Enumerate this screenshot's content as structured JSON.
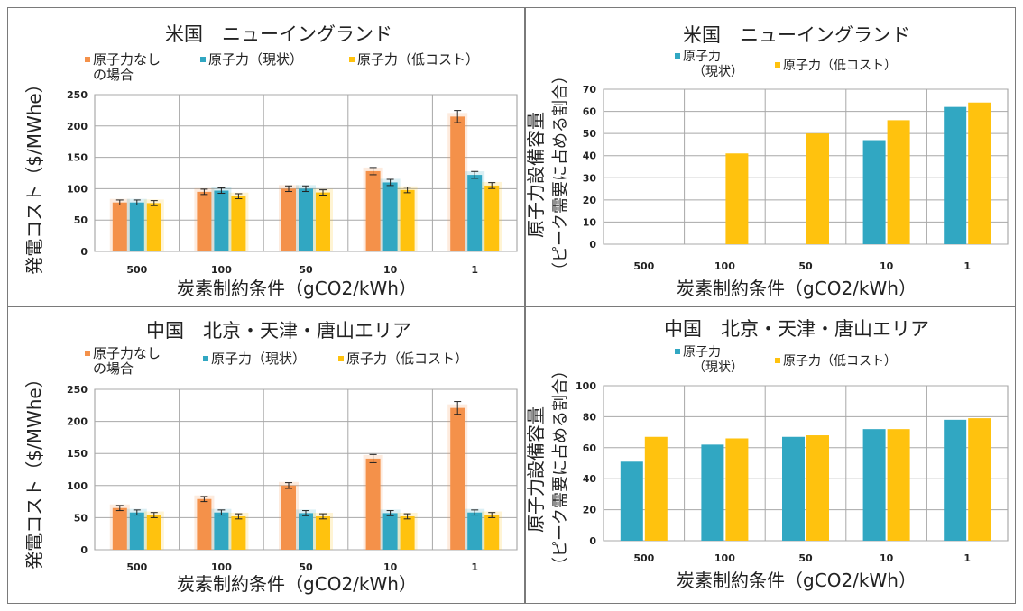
{
  "chart_data": [
    {
      "type": "bar",
      "title": "米国　ニューイングランド",
      "xlabel": "炭素制約条件（gCO2/kWh）",
      "ylabel": "発電コスト（$/MWhe）",
      "ylim": [
        0,
        250
      ],
      "yticks": [
        "0",
        "50",
        "100",
        "150",
        "200",
        "250"
      ],
      "categories": [
        "500",
        "100",
        "50",
        "10",
        "1"
      ],
      "error_bars": true,
      "grid": true,
      "legend_position": "top",
      "series": [
        {
          "name": "原子力なし",
          "name_line2": "の場合",
          "color": "#f4914a",
          "values": [
            78,
            95,
            100,
            128,
            215
          ]
        },
        {
          "name": "原子力（現状）",
          "color": "#31a7c2",
          "values": [
            78,
            97,
            100,
            110,
            122
          ]
        },
        {
          "name": "原子力（低コスト）",
          "color": "#ffc20e",
          "values": [
            77,
            88,
            94,
            98,
            105
          ]
        }
      ]
    },
    {
      "type": "bar",
      "title": "米国　ニューイングランド",
      "xlabel": "炭素制約条件（gCO2/kWh）",
      "ylabel": "原子力設備容量",
      "ylabel2": "（ピーク需要に占める割合）",
      "ylim": [
        0,
        70
      ],
      "yticks": [
        "0",
        "10",
        "20",
        "30",
        "40",
        "50",
        "60",
        "70"
      ],
      "categories": [
        "500",
        "100",
        "50",
        "10",
        "1"
      ],
      "grid": true,
      "legend_position": "top",
      "series": [
        {
          "name": "原子力",
          "name_line2": "（現状）",
          "color": "#31a7c2",
          "values": [
            0,
            0,
            0,
            47,
            62
          ]
        },
        {
          "name": "原子力（低コスト）",
          "color": "#ffc20e",
          "values": [
            0,
            41,
            50,
            56,
            64
          ]
        }
      ]
    },
    {
      "type": "bar",
      "title": "中国　北京・天津・唐山エリア",
      "xlabel": "炭素制約条件（gCO2/kWh）",
      "ylabel": "発電コスト（$/MWhe）",
      "ylim": [
        0,
        250
      ],
      "yticks": [
        "0",
        "50",
        "100",
        "150",
        "200",
        "250"
      ],
      "categories": [
        "500",
        "100",
        "50",
        "10",
        "1"
      ],
      "error_bars": true,
      "grid": true,
      "legend_position": "top",
      "series": [
        {
          "name": "原子力なし",
          "name_line2": "の場合",
          "color": "#f4914a",
          "values": [
            65,
            79,
            100,
            142,
            221
          ]
        },
        {
          "name": "原子力（現状）",
          "color": "#31a7c2",
          "values": [
            58,
            58,
            57,
            57,
            58
          ]
        },
        {
          "name": "原子力（低コスト）",
          "color": "#ffc20e",
          "values": [
            54,
            52,
            52,
            52,
            54
          ]
        }
      ]
    },
    {
      "type": "bar",
      "title": "中国　北京・天津・唐山エリア",
      "xlabel": "炭素制約条件（gCO2/kWh）",
      "ylabel": "原子力設備容量",
      "ylabel2": "（ピーク需要に占める割合）",
      "ylim": [
        0,
        100
      ],
      "yticks": [
        "0",
        "20",
        "40",
        "60",
        "80",
        "100"
      ],
      "categories": [
        "500",
        "100",
        "50",
        "10",
        "1"
      ],
      "grid": true,
      "legend_position": "top",
      "series": [
        {
          "name": "原子力",
          "name_line2": "（現状）",
          "color": "#31a7c2",
          "values": [
            51,
            62,
            67,
            72,
            78
          ]
        },
        {
          "name": "原子力（低コスト）",
          "color": "#ffc20e",
          "values": [
            67,
            66,
            68,
            72,
            79
          ]
        }
      ]
    }
  ]
}
